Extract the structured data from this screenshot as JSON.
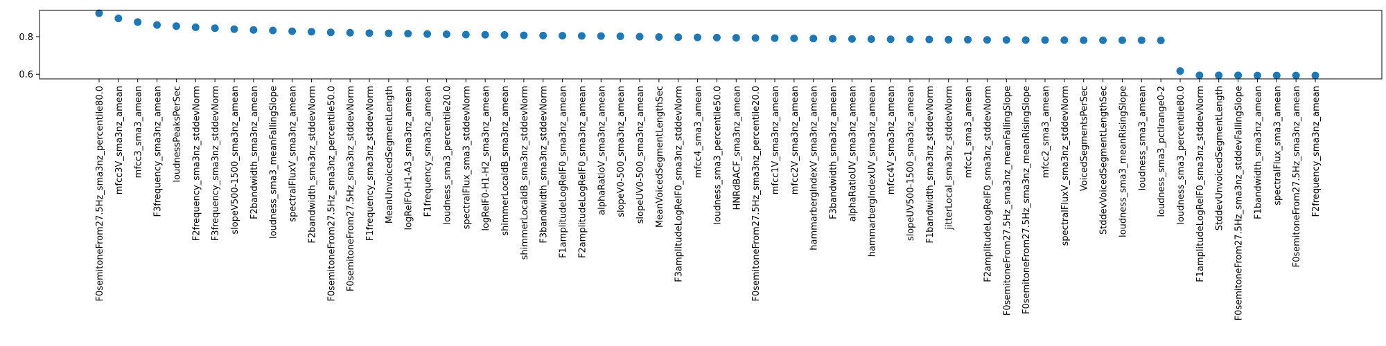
{
  "chart_data": {
    "type": "scatter",
    "title": "",
    "xlabel": "",
    "ylabel": "",
    "ylim": [
      0.575,
      0.94
    ],
    "yticks": [
      0.6,
      0.8
    ],
    "grid": false,
    "marker_color": "#1f77b4",
    "categories": [
      "F0semitoneFrom27.5Hz_sma3nz_percentile80.0",
      "mfcc3V_sma3nz_amean",
      "mfcc3_sma3_amean",
      "F3frequency_sma3nz_amean",
      "loudnessPeaksPerSec",
      "F2frequency_sma3nz_stddevNorm",
      "F3frequency_sma3nz_stddevNorm",
      "slopeV500-1500_sma3nz_amean",
      "F2bandwidth_sma3nz_amean",
      "loudness_sma3_meanFallingSlope",
      "spectralFluxV_sma3nz_amean",
      "F2bandwidth_sma3nz_stddevNorm",
      "F0semitoneFrom27.5Hz_sma3nz_percentile50.0",
      "F0semitoneFrom27.5Hz_sma3nz_stddevNorm",
      "F1frequency_sma3nz_stddevNorm",
      "MeanUnvoicedSegmentLength",
      "logRelF0-H1-A3_sma3nz_amean",
      "F1frequency_sma3nz_amean",
      "loudness_sma3_percentile20.0",
      "spectralFlux_sma3_stddevNorm",
      "logRelF0-H1-H2_sma3nz_amean",
      "shimmerLocaldB_sma3nz_amean",
      "shimmerLocaldB_sma3nz_stddevNorm",
      "F3bandwidth_sma3nz_stddevNorm",
      "F1amplitudeLogRelF0_sma3nz_amean",
      "F2amplitudeLogRelF0_sma3nz_amean",
      "alphaRatioV_sma3nz_amean",
      "slopeV0-500_sma3nz_amean",
      "slopeUV0-500_sma3nz_amean",
      "MeanVoicedSegmentLengthSec",
      "F3amplitudeLogRelF0_sma3nz_stddevNorm",
      "mfcc4_sma3_amean",
      "loudness_sma3_percentile50.0",
      "HNRdBACF_sma3nz_amean",
      "F0semitoneFrom27.5Hz_sma3nz_percentile20.0",
      "mfcc1V_sma3nz_amean",
      "mfcc2V_sma3nz_amean",
      "hammarbergIndexV_sma3nz_amean",
      "F3bandwidth_sma3nz_amean",
      "alphaRatioUV_sma3nz_amean",
      "hammarbergIndexUV_sma3nz_amean",
      "mfcc4V_sma3nz_amean",
      "slopeUV500-1500_sma3nz_amean",
      "F1bandwidth_sma3nz_stddevNorm",
      "jitterLocal_sma3nz_stddevNorm",
      "mfcc1_sma3_amean",
      "F2amplitudeLogRelF0_sma3nz_stddevNorm",
      "F0semitoneFrom27.5Hz_sma3nz_meanFallingSlope",
      "F0semitoneFrom27.5Hz_sma3nz_meanRisingSlope",
      "mfcc2_sma3_amean",
      "spectralFluxV_sma3nz_stddevNorm",
      "VoicedSegmentsPerSec",
      "StddevVoicedSegmentLengthSec",
      "loudness_sma3_meanRisingSlope",
      "loudness_sma3_amean",
      "loudness_sma3_pctlrange0-2",
      "loudness_sma3_percentile80.0",
      "F1amplitudeLogRelF0_sma3nz_stddevNorm",
      "StddevUnvoicedSegmentLength",
      "F0semitoneFrom27.5Hz_sma3nz_stddevFallingSlope",
      "F1bandwidth_sma3nz_amean",
      "spectralFlux_sma3_amean",
      "F0semitoneFrom27.5Hz_sma3nz_amean",
      "F2frequency_sma3nz_amean"
    ],
    "values": [
      0.925,
      0.897,
      0.878,
      0.862,
      0.856,
      0.85,
      0.845,
      0.84,
      0.836,
      0.833,
      0.829,
      0.826,
      0.823,
      0.821,
      0.819,
      0.818,
      0.816,
      0.814,
      0.813,
      0.811,
      0.81,
      0.809,
      0.807,
      0.806,
      0.805,
      0.804,
      0.803,
      0.802,
      0.8,
      0.798,
      0.797,
      0.796,
      0.795,
      0.794,
      0.793,
      0.792,
      0.791,
      0.79,
      0.789,
      0.788,
      0.787,
      0.786,
      0.786,
      0.785,
      0.784,
      0.784,
      0.783,
      0.783,
      0.782,
      0.782,
      0.782,
      0.781,
      0.781,
      0.781,
      0.781,
      0.78,
      0.617,
      0.594,
      0.594,
      0.594,
      0.593,
      0.593,
      0.593,
      0.593
    ]
  }
}
